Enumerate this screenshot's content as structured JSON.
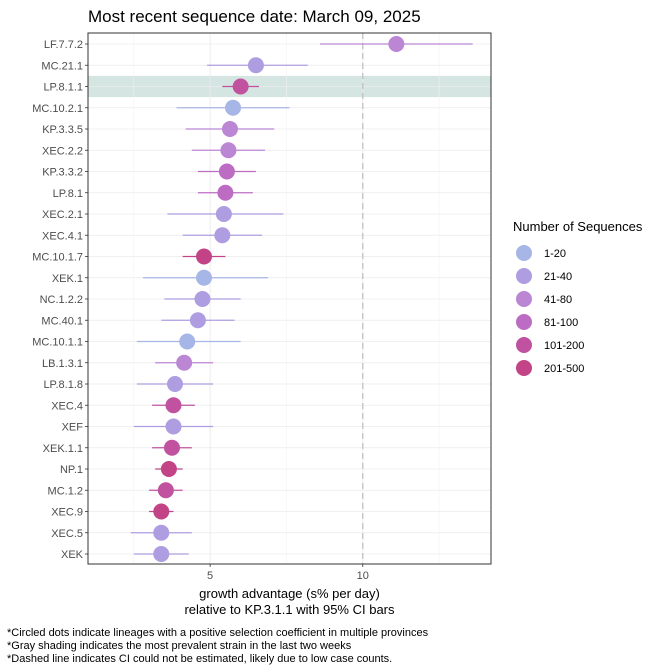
{
  "chart_data": {
    "type": "scatter",
    "title": "Most recent sequence date: March 09, 2025",
    "xlabel_line1": "growth advantage (s% per day)",
    "xlabel_line2": "relative to  KP.3.1.1  with 95% CI bars",
    "xlim": [
      1.0,
      14.2
    ],
    "xticks": [
      5,
      10
    ],
    "reference_line_x": 10,
    "highlighted_lineage": "LP.8.1.1",
    "legend_title": "Number of Sequences",
    "legend_placement": "right",
    "legend": [
      {
        "label": "1-20",
        "color": "#a6b6e6"
      },
      {
        "label": "21-40",
        "color": "#ae9de0"
      },
      {
        "label": "41-80",
        "color": "#bb86d4"
      },
      {
        "label": "81-100",
        "color": "#bd6cc4"
      },
      {
        "label": "101-200",
        "color": "#c1529f"
      },
      {
        "label": "201-500",
        "color": "#c24386"
      }
    ],
    "points": [
      {
        "lineage": "LF.7.7.2",
        "value": 11.1,
        "lo": 8.6,
        "hi": 13.6,
        "group": 2
      },
      {
        "lineage": "MC.21.1",
        "value": 6.5,
        "lo": 4.9,
        "hi": 8.2,
        "group": 1
      },
      {
        "lineage": "LP.8.1.1",
        "value": 6.0,
        "lo": 5.4,
        "hi": 6.6,
        "group": 4
      },
      {
        "lineage": "MC.10.2.1",
        "value": 5.75,
        "lo": 3.9,
        "hi": 7.6,
        "group": 0
      },
      {
        "lineage": "KP.3.3.5",
        "value": 5.65,
        "lo": 4.2,
        "hi": 7.1,
        "group": 2
      },
      {
        "lineage": "XEC.2.2",
        "value": 5.6,
        "lo": 4.4,
        "hi": 6.8,
        "group": 2
      },
      {
        "lineage": "KP.3.3.2",
        "value": 5.55,
        "lo": 4.6,
        "hi": 6.5,
        "group": 3
      },
      {
        "lineage": "LP.8.1",
        "value": 5.5,
        "lo": 4.6,
        "hi": 6.4,
        "group": 3
      },
      {
        "lineage": "XEC.2.1",
        "value": 5.45,
        "lo": 3.6,
        "hi": 7.4,
        "group": 1
      },
      {
        "lineage": "XEC.4.1",
        "value": 5.4,
        "lo": 4.1,
        "hi": 6.7,
        "group": 1
      },
      {
        "lineage": "MC.10.1.7",
        "value": 4.8,
        "lo": 4.1,
        "hi": 5.5,
        "group": 5
      },
      {
        "lineage": "XEK.1",
        "value": 4.8,
        "lo": 2.8,
        "hi": 6.9,
        "group": 0
      },
      {
        "lineage": "NC.1.2.2",
        "value": 4.75,
        "lo": 3.5,
        "hi": 6.0,
        "group": 1
      },
      {
        "lineage": "MC.40.1",
        "value": 4.6,
        "lo": 3.4,
        "hi": 5.8,
        "group": 1
      },
      {
        "lineage": "MC.10.1.1",
        "value": 4.25,
        "lo": 2.6,
        "hi": 6.0,
        "group": 0
      },
      {
        "lineage": "LB.1.3.1",
        "value": 4.15,
        "lo": 3.2,
        "hi": 5.1,
        "group": 2
      },
      {
        "lineage": "LP.8.1.8",
        "value": 3.85,
        "lo": 2.6,
        "hi": 5.1,
        "group": 1
      },
      {
        "lineage": "XEC.4",
        "value": 3.8,
        "lo": 3.1,
        "hi": 4.5,
        "group": 4
      },
      {
        "lineage": "XEF",
        "value": 3.8,
        "lo": 2.5,
        "hi": 5.1,
        "group": 1
      },
      {
        "lineage": "XEK.1.1",
        "value": 3.75,
        "lo": 3.1,
        "hi": 4.4,
        "group": 4
      },
      {
        "lineage": "NP.1",
        "value": 3.65,
        "lo": 3.2,
        "hi": 4.1,
        "group": 5
      },
      {
        "lineage": "MC.1.2",
        "value": 3.55,
        "lo": 3.0,
        "hi": 4.1,
        "group": 4
      },
      {
        "lineage": "XEC.9",
        "value": 3.4,
        "lo": 3.0,
        "hi": 3.8,
        "group": 5
      },
      {
        "lineage": "XEC.5",
        "value": 3.4,
        "lo": 2.4,
        "hi": 4.4,
        "group": 1
      },
      {
        "lineage": "XEK",
        "value": 3.4,
        "lo": 2.5,
        "hi": 4.3,
        "group": 1
      }
    ]
  },
  "footnotes": [
    "*Circled dots indicate lineages with a positive selection coefficient in multiple provinces",
    "*Gray shading indicates the most prevalent strain in the last two weeks",
    "*Dashed line indicates CI could not be estimated, likely due to low case counts."
  ]
}
